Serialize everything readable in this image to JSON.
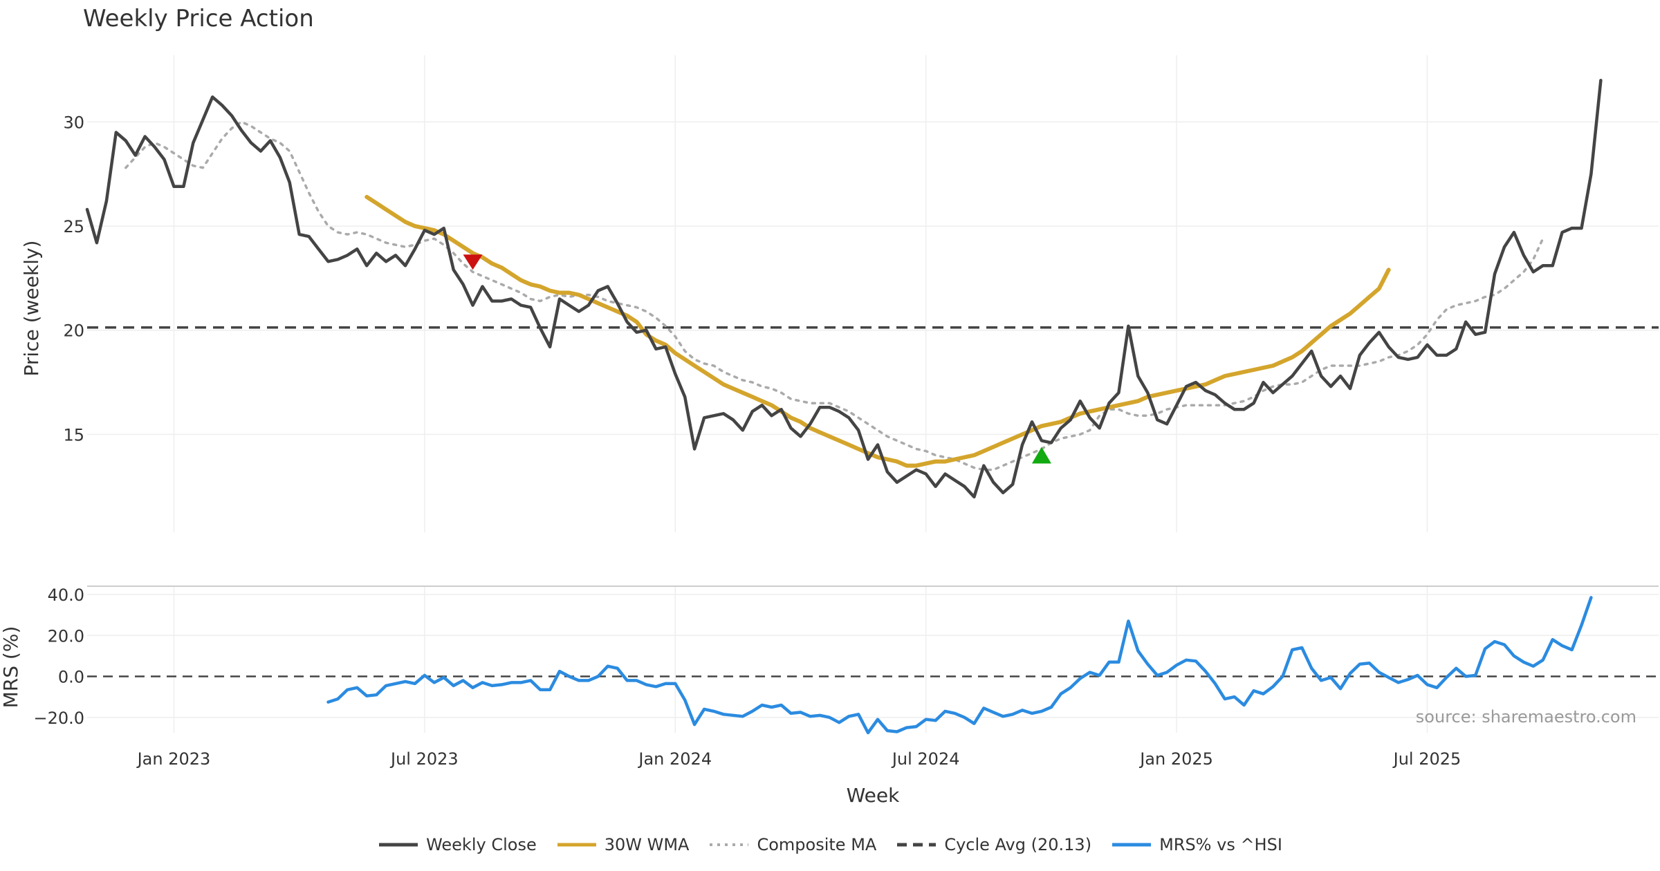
{
  "colors": {
    "close": "#444444",
    "wma": "#d4a52c",
    "composite": "#aaaaaa",
    "cycle": "#444444",
    "mrs": "#2b8be0",
    "sell": "#cc1111",
    "buy": "#11aa11",
    "grid": "#eeeeee"
  },
  "chart_data": {
    "type": "line",
    "title": "Weekly Price Action",
    "xlabel": "Week",
    "source": "source: sharemaestro.com",
    "x_ticks": [
      {
        "week": 9,
        "label": "Jan 2023"
      },
      {
        "week": 35,
        "label": "Jul 2023"
      },
      {
        "week": 61,
        "label": "Jan 2024"
      },
      {
        "week": 87,
        "label": "Jul 2024"
      },
      {
        "week": 113,
        "label": "Jan 2025"
      },
      {
        "week": 139,
        "label": "Jul 2025"
      }
    ],
    "price_panel": {
      "ylabel": "Price (weekly)",
      "ylim": [
        10.3,
        33.2
      ],
      "yticks": [
        {
          "value": 15,
          "label": "15"
        },
        {
          "value": 20,
          "label": "20"
        },
        {
          "value": 25,
          "label": "25"
        },
        {
          "value": 30,
          "label": "30"
        }
      ],
      "cycle_avg": 20.13,
      "series": [
        {
          "name": "Weekly Close",
          "start_week": 0,
          "values": [
            25.8,
            24.2,
            26.2,
            29.5,
            29.1,
            28.4,
            29.3,
            28.8,
            28.2,
            26.9,
            26.9,
            29.0,
            30.1,
            31.2,
            30.8,
            30.3,
            29.6,
            29.0,
            28.6,
            29.1,
            28.3,
            27.1,
            24.6,
            24.5,
            23.9,
            23.3,
            23.4,
            23.6,
            23.9,
            23.1,
            23.7,
            23.3,
            23.6,
            23.1,
            23.9,
            24.8,
            24.6,
            24.9,
            22.9,
            22.2,
            21.2,
            22.1,
            21.4,
            21.4,
            21.5,
            21.2,
            21.1,
            20.1,
            19.2,
            21.5,
            21.2,
            20.9,
            21.2,
            21.9,
            22.1,
            21.3,
            20.4,
            19.9,
            20.0,
            19.1,
            19.2,
            17.9,
            16.8,
            14.3,
            15.8,
            15.9,
            16.0,
            15.7,
            15.2,
            16.1,
            16.4,
            15.9,
            16.2,
            15.3,
            14.9,
            15.5,
            16.3,
            16.3,
            16.1,
            15.8,
            15.2,
            13.8,
            14.5,
            13.2,
            12.7,
            13.0,
            13.3,
            13.1,
            12.5,
            13.1,
            12.8,
            12.5,
            12.0,
            13.5,
            12.7,
            12.2,
            12.6,
            14.5,
            15.6,
            14.7,
            14.6,
            15.3,
            15.7,
            16.6,
            15.8,
            15.3,
            16.5,
            17.0,
            20.2,
            17.8,
            17.0,
            15.7,
            15.5,
            16.4,
            17.3,
            17.5,
            17.1,
            16.9,
            16.5,
            16.2,
            16.2,
            16.5,
            17.5,
            17.0,
            17.4,
            17.8,
            18.4,
            19.0,
            17.8,
            17.3,
            17.8,
            17.2,
            18.8,
            19.4,
            19.9,
            19.2,
            18.7,
            18.6,
            18.7,
            19.3,
            18.8,
            18.8,
            19.1,
            20.4,
            19.8,
            19.9,
            22.7,
            24.0,
            24.7,
            23.6,
            22.8,
            23.1,
            23.1,
            24.7,
            24.9,
            24.9,
            27.5,
            32.0
          ]
        },
        {
          "name": "30W WMA",
          "start_week": 29,
          "values": [
            26.4,
            26.1,
            25.8,
            25.5,
            25.2,
            25.0,
            24.9,
            24.8,
            24.6,
            24.3,
            24.0,
            23.7,
            23.5,
            23.2,
            23.0,
            22.7,
            22.4,
            22.2,
            22.1,
            21.9,
            21.8,
            21.8,
            21.7,
            21.5,
            21.3,
            21.1,
            20.9,
            20.7,
            20.4,
            19.8,
            19.5,
            19.3,
            18.9,
            18.6,
            18.3,
            18.0,
            17.7,
            17.4,
            17.2,
            17.0,
            16.8,
            16.6,
            16.4,
            16.1,
            15.8,
            15.6,
            15.3,
            15.1,
            14.9,
            14.7,
            14.5,
            14.3,
            14.1,
            13.9,
            13.8,
            13.7,
            13.5,
            13.5,
            13.6,
            13.7,
            13.7,
            13.8,
            13.9,
            14.0,
            14.2,
            14.4,
            14.6,
            14.8,
            15.0,
            15.2,
            15.4,
            15.5,
            15.6,
            15.8,
            16.0,
            16.1,
            16.2,
            16.3,
            16.4,
            16.5,
            16.6,
            16.8,
            16.9,
            17.0,
            17.1,
            17.2,
            17.3,
            17.4,
            17.6,
            17.8,
            17.9,
            18.0,
            18.1,
            18.2,
            18.3,
            18.5,
            18.7,
            19.0,
            19.4,
            19.8,
            20.2,
            20.5,
            20.8,
            21.2,
            21.6,
            22.0,
            22.9
          ]
        },
        {
          "name": "Composite MA",
          "start_week": 4,
          "values": [
            27.8,
            28.3,
            28.8,
            29.0,
            28.8,
            28.5,
            28.2,
            27.9,
            27.8,
            28.5,
            29.2,
            29.7,
            30.0,
            29.8,
            29.5,
            29.2,
            29.0,
            28.6,
            27.6,
            26.6,
            25.7,
            25.0,
            24.7,
            24.6,
            24.7,
            24.6,
            24.4,
            24.2,
            24.1,
            24.0,
            24.1,
            24.3,
            24.4,
            24.1,
            23.7,
            23.2,
            22.8,
            22.6,
            22.4,
            22.2,
            22.0,
            21.8,
            21.5,
            21.4,
            21.6,
            21.7,
            21.6,
            21.7,
            21.7,
            21.6,
            21.4,
            21.3,
            21.2,
            21.1,
            20.9,
            20.6,
            20.2,
            19.7,
            19.0,
            18.6,
            18.4,
            18.3,
            18.0,
            17.8,
            17.6,
            17.5,
            17.3,
            17.2,
            17.0,
            16.7,
            16.6,
            16.5,
            16.5,
            16.5,
            16.3,
            16.1,
            15.8,
            15.5,
            15.2,
            14.9,
            14.7,
            14.5,
            14.3,
            14.2,
            14.0,
            13.9,
            13.8,
            13.6,
            13.4,
            13.3,
            13.3,
            13.5,
            13.7,
            13.9,
            14.1,
            14.3,
            14.6,
            14.8,
            14.9,
            15.0,
            15.2,
            15.9,
            16.2,
            16.2,
            16.0,
            15.9,
            15.9,
            16.0,
            16.2,
            16.3,
            16.4,
            16.4,
            16.4,
            16.4,
            16.4,
            16.5,
            16.6,
            16.8,
            17.1,
            17.3,
            17.4,
            17.4,
            17.5,
            17.8,
            18.1,
            18.3,
            18.3,
            18.3,
            18.3,
            18.4,
            18.5,
            18.7,
            18.8,
            19.0,
            19.3,
            19.8,
            20.5,
            21.0,
            21.2,
            21.3,
            21.4,
            21.6,
            21.7,
            22.0,
            22.4,
            22.8,
            23.4,
            24.4
          ]
        }
      ],
      "signals": [
        {
          "type": "sell",
          "week": 40,
          "price": 23.3
        },
        {
          "type": "buy",
          "week": 99,
          "price": 14.0
        }
      ]
    },
    "mrs_panel": {
      "ylabel": "MRS (%)",
      "ylim": [
        -27.5,
        40.0
      ],
      "yticks": [
        {
          "value": 40,
          "label": "40.0"
        },
        {
          "value": 20,
          "label": "20.0"
        },
        {
          "value": 0,
          "label": "0.0"
        },
        {
          "value": -20,
          "label": "−20.0"
        }
      ],
      "series": {
        "name": "MRS% vs ^HSI",
        "start_week": 25,
        "values": [
          -12.5,
          -11,
          -6.5,
          -5.5,
          -9.5,
          -9,
          -4.5,
          -3.5,
          -2.5,
          -3.5,
          0.5,
          -3,
          -0.5,
          -4.5,
          -2,
          -5.5,
          -3,
          -4.5,
          -4,
          -3,
          -3,
          -2,
          -6.5,
          -6.5,
          2.5,
          0,
          -2,
          -2,
          0,
          5,
          4,
          -2,
          -2,
          -4,
          -5,
          -3.5,
          -3.5,
          -11.5,
          -23.5,
          -16,
          -17,
          -18.5,
          -19,
          -19.5,
          -17,
          -14,
          -15,
          -14,
          -18,
          -17.5,
          -19.5,
          -19,
          -20,
          -22.5,
          -19.5,
          -18.5,
          -27.5,
          -21,
          -26.5,
          -27,
          -25,
          -24.5,
          -21,
          -21.5,
          -17,
          -18,
          -20,
          -23,
          -15.5,
          -17.5,
          -19.5,
          -18.5,
          -16.5,
          -18,
          -17,
          -15,
          -8.5,
          -5.5,
          -1,
          2,
          0.5,
          7,
          7,
          27,
          12.5,
          6,
          0.5,
          2,
          5.5,
          8,
          7.5,
          2.5,
          -3.5,
          -11,
          -10,
          -14,
          -7,
          -8.5,
          -5,
          0,
          13,
          14,
          4,
          -2,
          -0.5,
          -6,
          1.5,
          6,
          6.5,
          2,
          -0.5,
          -3,
          -1.5,
          0.5,
          -4,
          -5.5,
          -0.5,
          4,
          0,
          0.5,
          13.5,
          17,
          15.5,
          10,
          7,
          5,
          8,
          18,
          15,
          13,
          25,
          38.5
        ]
      }
    },
    "legend": [
      {
        "key": "close",
        "label": "Weekly Close",
        "style": "solid"
      },
      {
        "key": "wma",
        "label": "30W WMA",
        "style": "solid"
      },
      {
        "key": "composite",
        "label": "Composite MA",
        "style": "dotted"
      },
      {
        "key": "cycle",
        "label": "Cycle Avg (20.13)",
        "style": "dashed"
      },
      {
        "key": "mrs",
        "label": "MRS% vs ^HSI",
        "style": "solid"
      }
    ]
  }
}
